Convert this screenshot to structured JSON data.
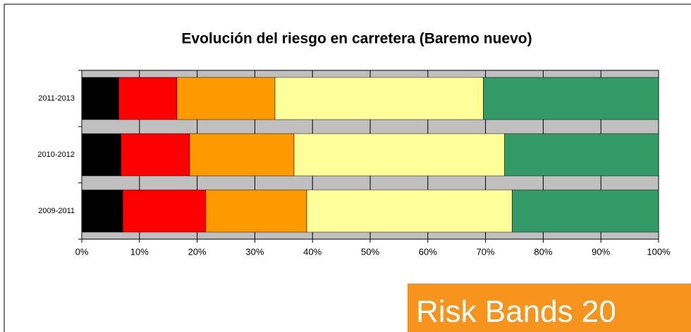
{
  "chart_data": {
    "type": "stacked_barh",
    "title": "Evolución del riesgo en carretera (Baremo nuevo)",
    "categories": [
      "2011-2013",
      "2010-2012",
      "2009-2011"
    ],
    "series": [
      {
        "color": "#000000",
        "values": [
          6.4,
          6.8,
          7.1
        ]
      },
      {
        "color": "#ff0000",
        "values": [
          10.1,
          11.9,
          14.4
        ]
      },
      {
        "color": "#ff9900",
        "values": [
          17.0,
          18.1,
          17.5
        ]
      },
      {
        "color": "#ffff99",
        "values": [
          36.1,
          36.5,
          35.6
        ]
      },
      {
        "color": "#339966",
        "values": [
          30.4,
          26.7,
          25.4
        ]
      }
    ],
    "xlim": [
      0,
      100
    ],
    "xticks": [
      {
        "value": 0,
        "label": "0%"
      },
      {
        "value": 10,
        "label": "10%"
      },
      {
        "value": 20,
        "label": "20%"
      },
      {
        "value": 30,
        "label": "30%"
      },
      {
        "value": 40,
        "label": "40%"
      },
      {
        "value": 50,
        "label": "50%"
      },
      {
        "value": 60,
        "label": "60%"
      },
      {
        "value": 70,
        "label": "70%"
      },
      {
        "value": 80,
        "label": "80%"
      },
      {
        "value": 90,
        "label": "90%"
      },
      {
        "value": 100,
        "label": "100%"
      }
    ],
    "grid": true,
    "annotation": "Risk Bands 20"
  }
}
